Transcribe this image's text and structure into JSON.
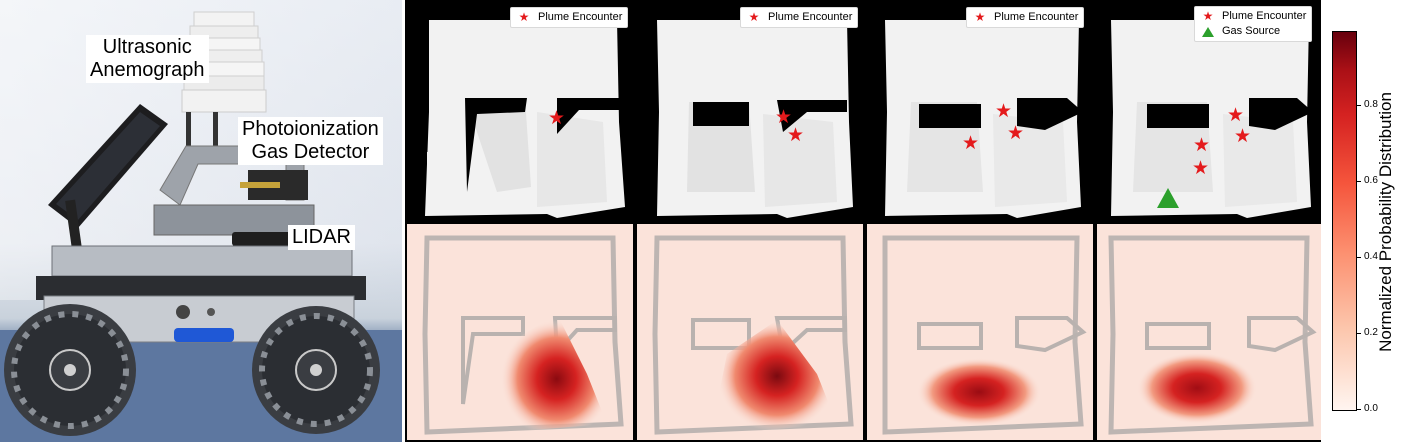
{
  "photo": {
    "labels": {
      "anemograph_line1": "Ultrasonic",
      "anemograph_line2": "Anemograph",
      "pid_line1": "Photoionization",
      "pid_line2": "Gas Detector",
      "lidar": "LIDAR"
    }
  },
  "legend": {
    "plume": "Plume Encounter",
    "source": "Gas Source"
  },
  "colorbar": {
    "title": "Normalized  Probability  Distribution",
    "ticks": [
      "0.0",
      "0.2",
      "0.4",
      "0.6",
      "0.8"
    ],
    "colors": [
      "#fff5f0",
      "#fcc5ab",
      "#fc8f6f",
      "#f5553c",
      "#d52221",
      "#67000d"
    ]
  },
  "colors": {
    "plume_marker": "#e41a1c",
    "source_marker": "#2ca02c",
    "map_free": "#f2f2f2",
    "map_obstacle": "#000000",
    "heat_background": "#fbe3da"
  }
}
